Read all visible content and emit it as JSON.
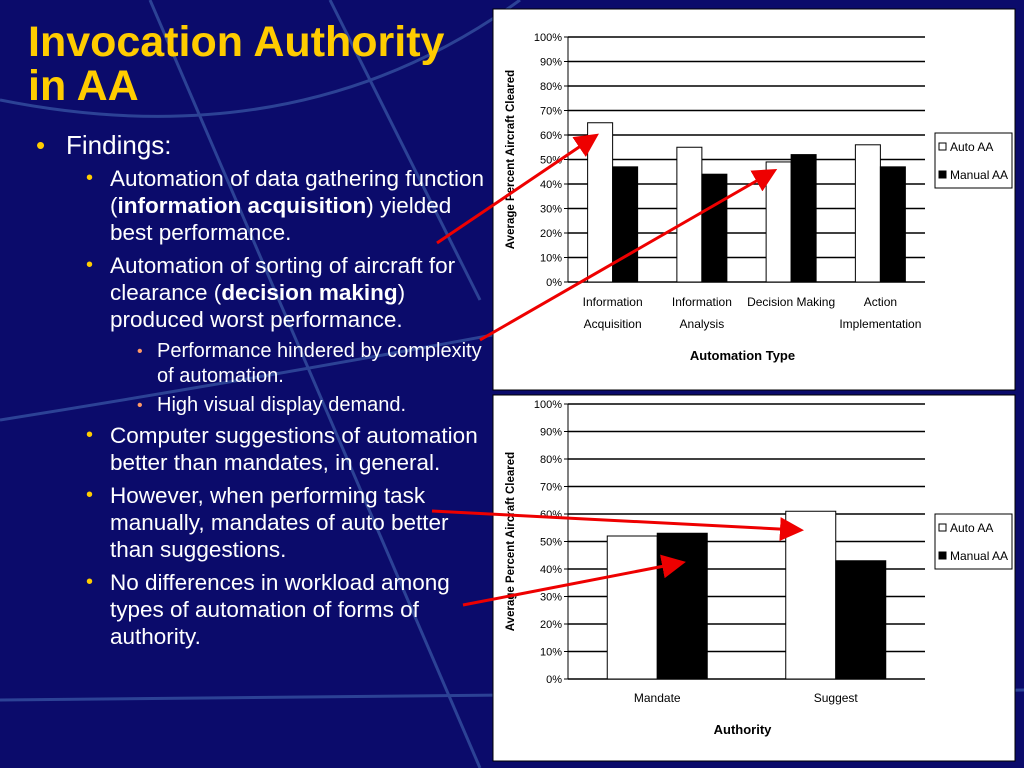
{
  "title": "Invocation Authority in AA",
  "findings": {
    "heading": "Findings:",
    "items": [
      {
        "parts": [
          {
            "text": "Automation of data gathering function ("
          },
          {
            "text": "information acquisition",
            "bold": true
          },
          {
            "text": ") yielded best performance."
          }
        ]
      },
      {
        "parts": [
          {
            "text": "Automation of sorting of aircraft for clearance ("
          },
          {
            "text": "decision making",
            "bold": true
          },
          {
            "text": ") produced worst performance."
          }
        ],
        "subitems": [
          "Performance hindered by complexity of automation.",
          "High visual display demand."
        ]
      },
      {
        "parts": [
          {
            "text": "Computer suggestions of automation better than mandates, in general."
          }
        ]
      },
      {
        "parts": [
          {
            "text": "However, when performing task manually, mandates of auto better than suggestions."
          }
        ]
      },
      {
        "parts": [
          {
            "text": "No differences in workload among types of automation of forms of authority."
          }
        ]
      }
    ]
  },
  "chart_data": [
    {
      "type": "bar",
      "x_label": "Automation Type",
      "y_label": "Average Percent Aircraft Cleared",
      "categories": [
        [
          "Information",
          "Acquisition"
        ],
        [
          "Information",
          "Analysis"
        ],
        [
          "Decision Making"
        ],
        [
          "Action",
          "Implementation"
        ]
      ],
      "series": [
        {
          "name": "Auto AA",
          "color": "#ffffff",
          "values": [
            65,
            55,
            49,
            56
          ]
        },
        {
          "name": "Manual AA",
          "color": "#000000",
          "values": [
            47,
            44,
            52,
            47
          ]
        }
      ],
      "ylim": [
        0,
        100
      ],
      "yticks": [
        {
          "value": 0,
          "label": "0%"
        },
        {
          "value": 10,
          "label": "10%"
        },
        {
          "value": 20,
          "label": "20%"
        },
        {
          "value": 30,
          "label": "30%"
        },
        {
          "value": 40,
          "label": "40%"
        },
        {
          "value": 50,
          "label": "50%"
        },
        {
          "value": 60,
          "label": "60%"
        },
        {
          "value": 70,
          "label": "70%"
        },
        {
          "value": 80,
          "label": "80%"
        },
        {
          "value": 90,
          "label": "90%"
        },
        {
          "value": 100,
          "label": "100%"
        }
      ],
      "grid": true,
      "legend": "right"
    },
    {
      "type": "bar",
      "x_label": "Authority",
      "y_label": "Average Percent Aircraft Cleared",
      "categories": [
        [
          "Mandate"
        ],
        [
          "Suggest"
        ]
      ],
      "series": [
        {
          "name": "Auto AA",
          "color": "#ffffff",
          "values": [
            52,
            61
          ]
        },
        {
          "name": "Manual AA",
          "color": "#000000",
          "values": [
            53,
            43
          ]
        }
      ],
      "ylim": [
        0,
        100
      ],
      "yticks": [
        {
          "value": 0,
          "label": "0%"
        },
        {
          "value": 10,
          "label": "10%"
        },
        {
          "value": 20,
          "label": "20%"
        },
        {
          "value": 30,
          "label": "30%"
        },
        {
          "value": 40,
          "label": "40%"
        },
        {
          "value": 50,
          "label": "50%"
        },
        {
          "value": 60,
          "label": "60%"
        },
        {
          "value": 70,
          "label": "70%"
        },
        {
          "value": 80,
          "label": "80%"
        },
        {
          "value": 90,
          "label": "90%"
        },
        {
          "value": 100,
          "label": "100%"
        }
      ],
      "grid": true,
      "legend": "right"
    }
  ]
}
